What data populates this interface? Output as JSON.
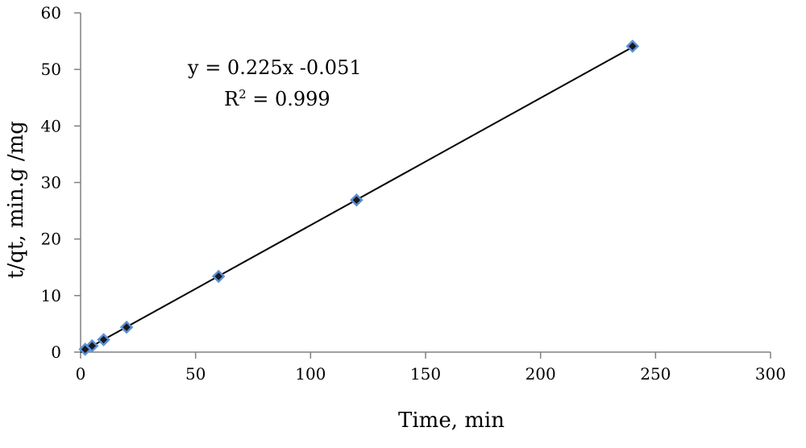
{
  "chart_data": {
    "type": "scatter",
    "title": "",
    "xlabel": "Time, min",
    "ylabel": "t/qt, min.g /mg",
    "xlim": [
      0,
      300
    ],
    "ylim": [
      0,
      60
    ],
    "xticks": [
      0,
      50,
      100,
      150,
      200,
      250,
      300
    ],
    "yticks": [
      0,
      10,
      20,
      30,
      40,
      50,
      60
    ],
    "grid": false,
    "series": [
      {
        "x": [
          2,
          5,
          10,
          20,
          60,
          120,
          240
        ],
        "y": [
          0.5,
          1.1,
          2.2,
          4.4,
          13.4,
          26.9,
          54.1
        ],
        "marker": "diamond",
        "marker_fill": "#1a1a1a",
        "marker_edge": "#5b8fd6"
      }
    ],
    "trendline": {
      "slope": 0.225,
      "intercept": -0.051,
      "x_range": [
        0,
        240
      ],
      "color": "#000000"
    },
    "annotations": {
      "equation": "y = 0.225x -0.051",
      "r_squared_prefix": "R",
      "r_squared_sup": "2",
      "r_squared_value": " = 0.999"
    }
  }
}
